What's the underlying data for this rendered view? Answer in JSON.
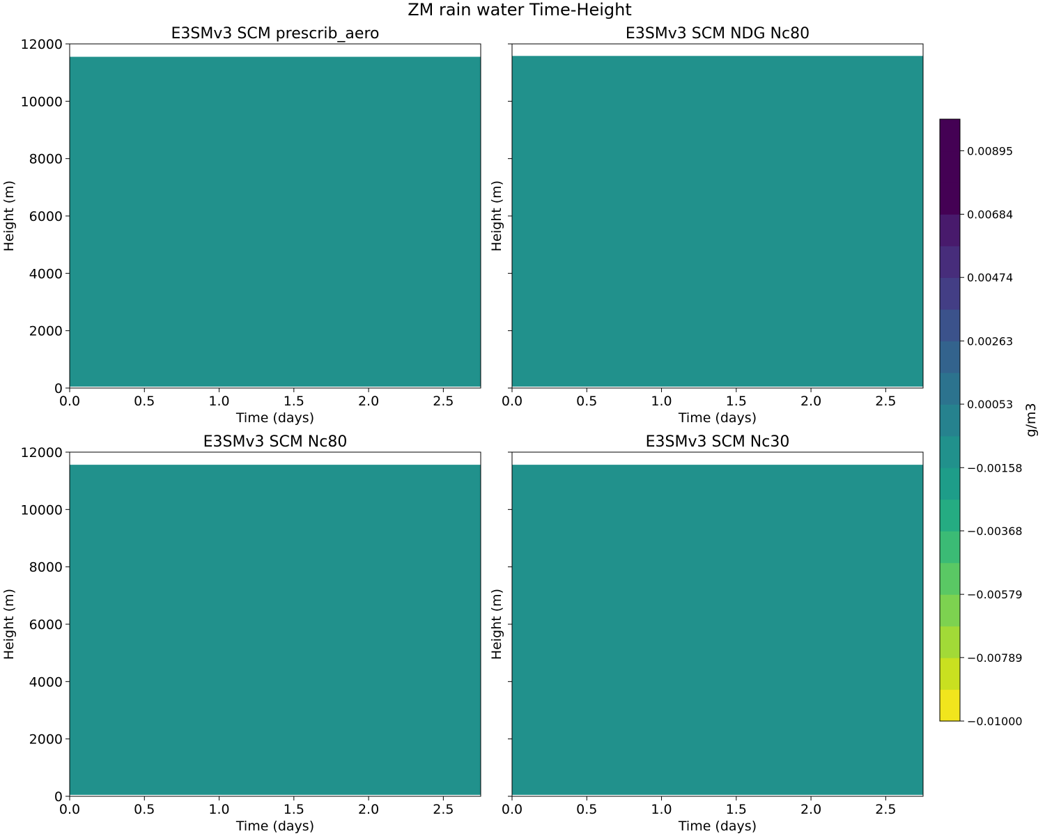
{
  "figure": {
    "suptitle": "ZM rain water Time-Height"
  },
  "chart_data": [
    {
      "type": "heatmap",
      "title": "E3SMv3 SCM prescrib_aero",
      "xlabel": "Time (days)",
      "ylabel": "Height (m)",
      "xlim": [
        0,
        2.75
      ],
      "ylim": [
        0,
        12000
      ],
      "xticks": [
        "0.0",
        "0.5",
        "1.0",
        "1.5",
        "2.0",
        "2.5"
      ],
      "yticks": [
        "0",
        "2000",
        "4000",
        "6000",
        "8000",
        "10000",
        "12000"
      ],
      "field": {
        "value_range": [
          -0.00053,
          0.00053
        ],
        "x_range": [
          0,
          2.75
        ],
        "height_range": [
          50,
          11550
        ]
      }
    },
    {
      "type": "heatmap",
      "title": "E3SMv3 SCM NDG Nc80",
      "xlabel": "Time (days)",
      "ylabel": "Height (m)",
      "xlim": [
        0,
        2.75
      ],
      "ylim": [
        0,
        12000
      ],
      "xticks": [
        "0.0",
        "0.5",
        "1.0",
        "1.5",
        "2.0",
        "2.5"
      ],
      "yticks": [],
      "field": {
        "value_range": [
          -0.00053,
          0.00053
        ],
        "x_range": [
          0,
          2.75
        ],
        "height_range": [
          50,
          11580
        ]
      }
    },
    {
      "type": "heatmap",
      "title": "E3SMv3 SCM Nc80",
      "xlabel": "Time (days)",
      "ylabel": "Height (m)",
      "xlim": [
        0,
        2.75
      ],
      "ylim": [
        0,
        12000
      ],
      "xticks": [
        "0.0",
        "0.5",
        "1.0",
        "1.5",
        "2.0",
        "2.5"
      ],
      "yticks": [
        "0",
        "2000",
        "4000",
        "6000",
        "8000",
        "10000",
        "12000"
      ],
      "field": {
        "value_range": [
          -0.00053,
          0.00053
        ],
        "x_range": [
          0,
          2.75
        ],
        "height_range": [
          50,
          11560
        ]
      }
    },
    {
      "type": "heatmap",
      "title": "E3SMv3 SCM Nc30",
      "xlabel": "Time (days)",
      "ylabel": "Height (m)",
      "xlim": [
        0,
        2.75
      ],
      "ylim": [
        0,
        12000
      ],
      "xticks": [
        "0.0",
        "0.5",
        "1.0",
        "1.5",
        "2.0",
        "2.5"
      ],
      "yticks": [],
      "field": {
        "value_range": [
          -0.00053,
          0.00053
        ],
        "x_range": [
          0,
          2.75
        ],
        "height_range": [
          50,
          11560
        ]
      }
    }
  ],
  "colorbar": {
    "label": "g/m3",
    "vmin": -0.01,
    "vmax": 0.01,
    "n_levels": 19,
    "field_color": "#21918c",
    "colors": [
      "#f1e51d",
      "#c9e020",
      "#a2da37",
      "#7dd250",
      "#5ac864",
      "#3bbb75",
      "#25ac82",
      "#1e9d89",
      "#21918c",
      "#26828e",
      "#2c738e",
      "#33638d",
      "#3b528b",
      "#433e85",
      "#472d7b",
      "#481a6c",
      "#440154",
      "#440154",
      "#440154"
    ],
    "tick_labels": [
      "-0.01000",
      "-0.00789",
      "-0.00579",
      "-0.00368",
      "-0.00158",
      "0.00053",
      "0.00263",
      "0.00474",
      "0.00684",
      "0.00895"
    ]
  }
}
